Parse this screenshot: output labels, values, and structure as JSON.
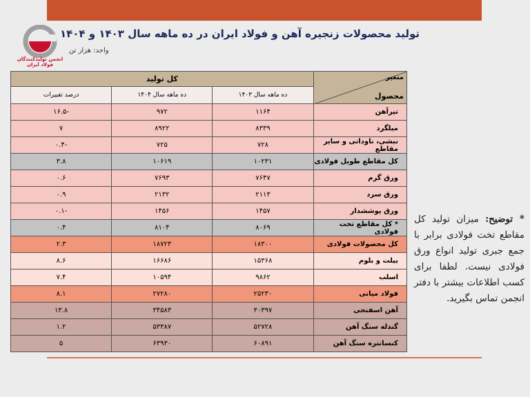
{
  "title": "تولید محصولات زنجیره آهن و فولاد ایران در ده ماهه سال ۱۴۰۳ و ۱۴۰۴",
  "unit": "واحد: هزار تن",
  "logo": {
    "org_line1": "انجمن تولیدکنندگان",
    "org_line2": "فولاد ایران",
    "colors": {
      "red": "#c8102e",
      "gray": "#9a9a9a"
    }
  },
  "accent_color": "#c9532c",
  "table": {
    "corner_top": "متغیر",
    "corner_bottom": "محصول",
    "group_header": "کل تولید",
    "columns": [
      "ده ماهه سال ۱۴۰۳",
      "ده ماهه سال ۱۴۰۴",
      "درصد تغییرات"
    ],
    "rows": [
      {
        "name": "تیرآهن",
        "v1403": "۱۱۶۴",
        "v1404": "۹۷۲",
        "change": "-۱۶.۵",
        "style": "pink"
      },
      {
        "name": "میلگرد",
        "v1403": "۸۳۳۹",
        "v1404": "۸۹۲۲",
        "change": "۷",
        "style": "pink"
      },
      {
        "name": "نبشی، ناودانی و سایر مقاطع",
        "v1403": "۷۲۸",
        "v1404": "۷۲۵",
        "change": "-۰.۴",
        "style": "pink"
      },
      {
        "name": "کل مقاطع طویل فولادی",
        "v1403": "۱۰۲۳۱",
        "v1404": "۱۰۶۱۹",
        "change": "۳.۸",
        "style": "gray"
      },
      {
        "name": "ورق گرم",
        "v1403": "۷۶۴۷",
        "v1404": "۷۶۹۳",
        "change": "۰.۶",
        "style": "pink"
      },
      {
        "name": "ورق سرد",
        "v1403": "۲۱۱۳",
        "v1404": "۲۱۳۲",
        "change": "۰.۹",
        "style": "pink"
      },
      {
        "name": "ورق پوششدار",
        "v1403": "۱۴۵۷",
        "v1404": "۱۴۵۶",
        "change": "-۰.۱",
        "style": "pink"
      },
      {
        "name": "* کل مقاطع تخت فولادی",
        "v1403": "۸۰۶۹",
        "v1404": "۸۱۰۴",
        "change": "۰.۴",
        "style": "gray"
      },
      {
        "name": "کل محصولات فولادی",
        "v1403": "۱۸۳۰۰",
        "v1404": "۱۸۷۲۳",
        "change": "۲.۳",
        "style": "orange"
      },
      {
        "name": "بیلت و بلوم",
        "v1403": "۱۵۳۶۸",
        "v1404": "۱۶۶۸۶",
        "change": "۸.۶",
        "style": "light"
      },
      {
        "name": "اسلب",
        "v1403": "۹۸۶۲",
        "v1404": "۱۰۵۹۴",
        "change": "۷.۴",
        "style": "light"
      },
      {
        "name": "فولاد میانی",
        "v1403": "۲۵۲۳۰",
        "v1404": "۲۷۲۸۰",
        "change": "۸.۱",
        "style": "orange"
      },
      {
        "name": "آهن اسفنجی",
        "v1403": "۳۰۳۹۷",
        "v1404": "۳۴۵۸۳",
        "change": "۱۳.۸",
        "style": "mauve"
      },
      {
        "name": "گندله سنگ آهن",
        "v1403": "۵۲۷۲۸",
        "v1404": "۵۳۳۸۷",
        "change": "۱.۲",
        "style": "mauve"
      },
      {
        "name": "کنسانتره سنگ آهن",
        "v1403": "۶۰۸۹۱",
        "v1404": "۶۳۹۳۰",
        "change": "۵",
        "style": "mauve"
      }
    ]
  },
  "note": {
    "label": "* توضیح:",
    "text": "میزان تولید کل مقاطع تخت فولادی برابر با جمع جبری تولید انواع ورق فولادی نیست. لطفا برای کسب اطلاعات بیشتر با دفتر انجمن تماس بگیرید."
  }
}
